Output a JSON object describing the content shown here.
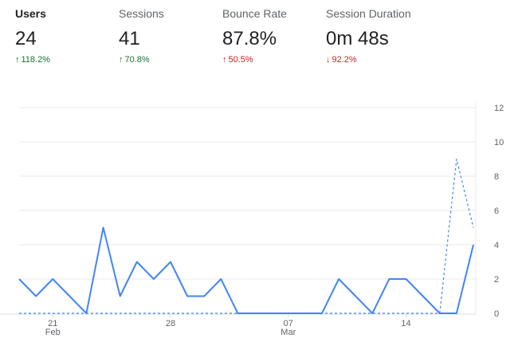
{
  "metrics": [
    {
      "label": "Users",
      "value": "24",
      "change": "118.2%",
      "direction": "up",
      "status": "good",
      "active": true
    },
    {
      "label": "Sessions",
      "value": "41",
      "change": "70.8%",
      "direction": "up",
      "status": "good",
      "active": false
    },
    {
      "label": "Bounce Rate",
      "value": "87.8%",
      "change": "50.5%",
      "direction": "up",
      "status": "bad",
      "active": false
    },
    {
      "label": "Session Duration",
      "value": "0m 48s",
      "change": "92.2%",
      "direction": "down",
      "status": "bad",
      "active": false
    }
  ],
  "icons": {
    "up": "arrow-up-icon",
    "down": "arrow-down-icon"
  },
  "colors": {
    "good": "#137333",
    "bad": "#c5221f",
    "line": "#4285f4",
    "grid": "#e8eaed"
  },
  "chart_data": {
    "type": "line",
    "y_ticks": [
      "0",
      "2",
      "4",
      "6",
      "8",
      "10",
      "12"
    ],
    "ylim": [
      0,
      12
    ],
    "x_ticks": [
      {
        "day": "21",
        "month": "Feb",
        "index": 2
      },
      {
        "day": "28",
        "month": "",
        "index": 9
      },
      {
        "day": "07",
        "month": "Mar",
        "index": 16
      },
      {
        "day": "14",
        "month": "",
        "index": 23
      }
    ],
    "series": [
      {
        "style": "solid",
        "values": [
          2,
          1,
          2,
          1,
          0,
          5,
          1,
          3,
          2,
          3,
          1,
          1,
          2,
          0,
          0,
          0,
          0,
          0,
          0,
          2,
          1,
          0,
          2,
          2,
          1,
          0,
          0,
          4
        ]
      },
      {
        "style": "dashed",
        "values": [
          0,
          0,
          0,
          0,
          0,
          0,
          0,
          0,
          0,
          0,
          0,
          0,
          0,
          0,
          0,
          0,
          0,
          0,
          0,
          0,
          0,
          0,
          0,
          0,
          0,
          0,
          9,
          5
        ]
      }
    ],
    "grid": true
  }
}
